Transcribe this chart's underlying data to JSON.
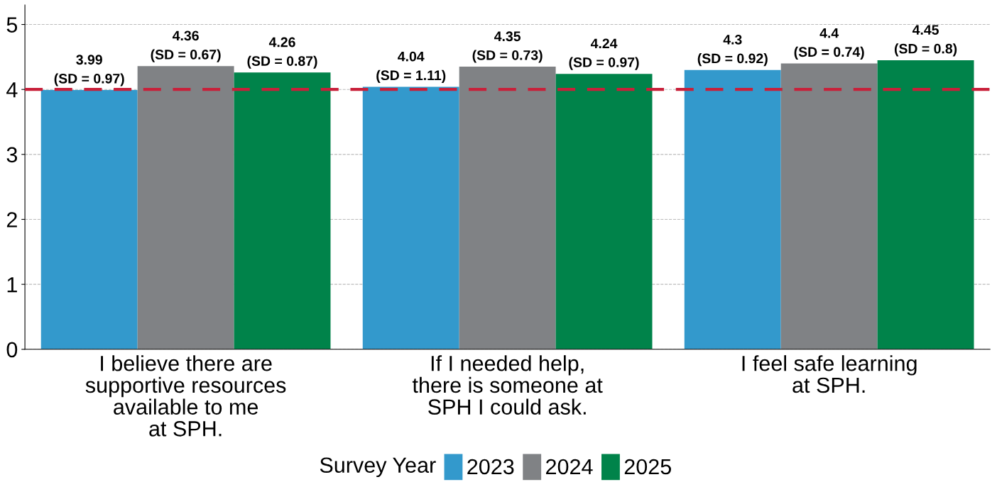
{
  "chart_data": {
    "type": "bar",
    "categories": [
      "I believe there are\nsupportive resources\navailable to me\nat SPH.",
      "If I needed help,\nthere is someone at\nSPH I could ask.",
      "I feel safe learning\nat SPH."
    ],
    "series": [
      {
        "name": "2023",
        "color": "#3399cc",
        "values": [
          3.99,
          4.04,
          4.3
        ],
        "value_labels": [
          "3.99\n(SD = 0.97)",
          "4.04\n(SD = 1.11)",
          "4.3\n(SD = 0.92)"
        ]
      },
      {
        "name": "2024",
        "color": "#808285",
        "values": [
          4.36,
          4.35,
          4.4
        ],
        "value_labels": [
          "4.36\n(SD = 0.67)",
          "4.35\n(SD = 0.73)",
          "4.4\n(SD = 0.74)"
        ]
      },
      {
        "name": "2025",
        "color": "#00834a",
        "values": [
          4.26,
          4.24,
          4.45
        ],
        "value_labels": [
          "4.26\n(SD = 0.87)",
          "4.24\n(SD = 0.97)",
          "4.45\n(SD = 0.8)"
        ]
      }
    ],
    "ylim": [
      0,
      5.3
    ],
    "yticks": [
      0,
      1,
      2,
      3,
      4,
      5
    ],
    "ref_lines": [
      {
        "axis": "y",
        "value": 4,
        "color": "#c8203a",
        "line_style": "dashed"
      }
    ],
    "grid": "y",
    "legend": "bottom",
    "legend_title": "Survey Year"
  }
}
